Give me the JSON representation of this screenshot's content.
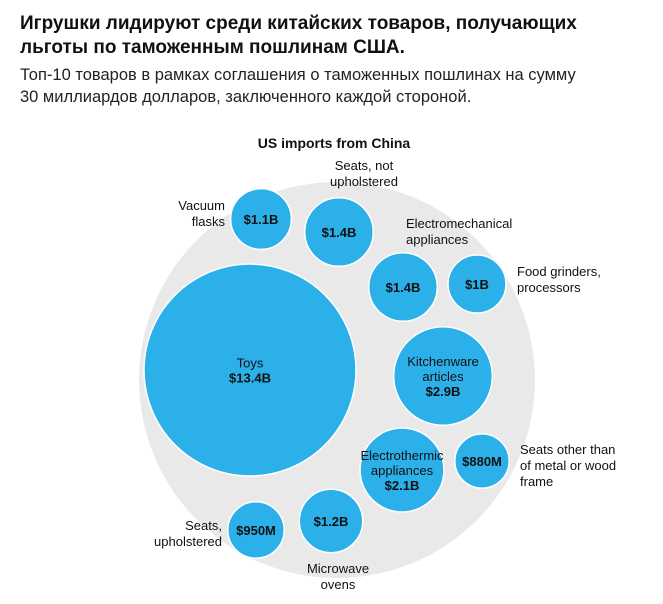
{
  "header": {
    "title_line1": "Игрушки лидируют среди китайских товаров, получающих",
    "title_line2": "льготы по таможенным пошлинам США.",
    "subtitle_line1": "Топ-10 товаров в рамках соглашения о таможенных пошлинах на сумму",
    "subtitle_line2": "30 миллиардов долларов, заключенного каждой стороной."
  },
  "colors": {
    "bubble": "#2cb0ea",
    "container": "#e9e9e9",
    "stroke": "#ffffff"
  },
  "chart_data": {
    "type": "bubble",
    "title": "US imports from China",
    "unit": "USD",
    "items": [
      {
        "name": "Toys",
        "value": 13.4,
        "value_label": "$13.4B",
        "label_inside": true
      },
      {
        "name": "Kitchenware articles",
        "value": 2.9,
        "value_label": "$2.9B",
        "label_inside": true
      },
      {
        "name": "Electrothermic appliances",
        "value": 2.1,
        "value_label": "$2.1B",
        "label_inside": true
      },
      {
        "name": "Seats, not upholstered",
        "value": 1.4,
        "value_label": "$1.4B",
        "label_inside": false
      },
      {
        "name": "Electromechanical appliances",
        "value": 1.4,
        "value_label": "$1.4B",
        "label_inside": false
      },
      {
        "name": "Microwave ovens",
        "value": 1.2,
        "value_label": "$1.2B",
        "label_inside": false
      },
      {
        "name": "Vacuum flasks",
        "value": 1.1,
        "value_label": "$1.1B",
        "label_inside": false
      },
      {
        "name": "Food grinders, processors",
        "value": 1.0,
        "value_label": "$1B",
        "label_inside": false
      },
      {
        "name": "Seats, upholstered",
        "value": 0.95,
        "value_label": "$950M",
        "label_inside": false
      },
      {
        "name": "Seats other than of metal or wood frame",
        "value": 0.88,
        "value_label": "$880M",
        "label_inside": false
      }
    ]
  }
}
